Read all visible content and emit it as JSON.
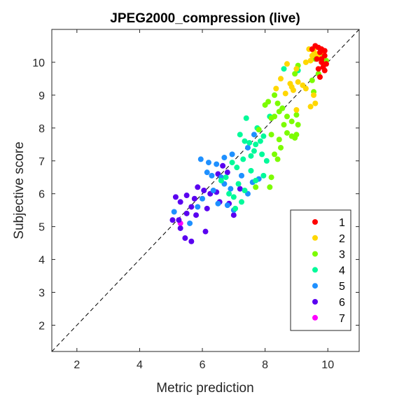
{
  "chart_data": {
    "type": "scatter",
    "title": "JPEG2000_compression (live)",
    "xlabel": "Metric prediction",
    "ylabel": "Subjective score",
    "xlim": [
      1.2,
      11.0
    ],
    "ylim": [
      1.2,
      11.0
    ],
    "xticks": [
      "2",
      "4",
      "6",
      "8",
      "10"
    ],
    "yticks": [
      "2",
      "3",
      "4",
      "5",
      "6",
      "7",
      "8",
      "9",
      "10"
    ],
    "grid": false,
    "reference_line": "diagonal dashed y = x",
    "legend_position": "bottom-right",
    "series": [
      {
        "name": "1",
        "color": "#ff0000",
        "points": [
          [
            9.6,
            10.5
          ],
          [
            9.7,
            10.45
          ],
          [
            9.8,
            10.4
          ],
          [
            9.75,
            10.3
          ],
          [
            9.9,
            10.2
          ],
          [
            9.65,
            10.1
          ],
          [
            9.8,
            10.0
          ],
          [
            9.95,
            9.95
          ],
          [
            9.85,
            9.85
          ],
          [
            9.7,
            9.8
          ],
          [
            9.9,
            9.75
          ],
          [
            9.75,
            9.55
          ],
          [
            9.5,
            10.4
          ],
          [
            9.9,
            10.35
          ],
          [
            9.8,
            10.1
          ]
        ]
      },
      {
        "name": "2",
        "color": "#ffd700",
        "points": [
          [
            9.4,
            10.4
          ],
          [
            9.55,
            10.35
          ],
          [
            9.65,
            10.25
          ],
          [
            9.5,
            10.2
          ],
          [
            9.7,
            10.15
          ],
          [
            9.3,
            10.0
          ],
          [
            9.8,
            10.3
          ],
          [
            9.45,
            10.05
          ],
          [
            9.6,
            10.45
          ],
          [
            9.0,
            9.8
          ],
          [
            8.7,
            9.95
          ],
          [
            8.5,
            9.5
          ],
          [
            8.8,
            9.35
          ],
          [
            9.05,
            9.4
          ],
          [
            9.2,
            9.3
          ],
          [
            8.85,
            9.25
          ],
          [
            9.3,
            9.2
          ],
          [
            8.9,
            9.15
          ],
          [
            8.65,
            9.05
          ],
          [
            9.55,
            9.0
          ],
          [
            9.6,
            8.75
          ],
          [
            9.45,
            8.65
          ],
          [
            9.0,
            8.55
          ],
          [
            8.35,
            9.2
          ]
        ]
      },
      {
        "name": "3",
        "color": "#7cfc00",
        "points": [
          [
            9.85,
            10.25
          ],
          [
            9.6,
            10.1
          ],
          [
            9.95,
            10.05
          ],
          [
            9.7,
            9.65
          ],
          [
            9.55,
            9.1
          ],
          [
            9.05,
            9.9
          ],
          [
            8.95,
            9.65
          ],
          [
            9.5,
            9.45
          ],
          [
            8.3,
            9.0
          ],
          [
            8.1,
            8.8
          ],
          [
            8.4,
            8.75
          ],
          [
            8.0,
            8.7
          ],
          [
            8.55,
            8.6
          ],
          [
            8.45,
            8.5
          ],
          [
            8.3,
            8.35
          ],
          [
            8.7,
            8.35
          ],
          [
            8.2,
            8.3
          ],
          [
            9.0,
            8.4
          ],
          [
            8.85,
            8.2
          ],
          [
            9.05,
            8.1
          ],
          [
            8.6,
            8.1
          ],
          [
            7.8,
            7.95
          ],
          [
            8.2,
            7.8
          ],
          [
            8.45,
            7.65
          ],
          [
            8.7,
            7.85
          ],
          [
            8.85,
            7.75
          ],
          [
            9.0,
            7.8
          ],
          [
            8.95,
            7.7
          ],
          [
            8.5,
            7.4
          ],
          [
            8.3,
            7.2
          ],
          [
            8.4,
            7.05
          ],
          [
            8.2,
            6.5
          ],
          [
            8.15,
            6.2
          ],
          [
            7.7,
            6.2
          ]
        ]
      },
      {
        "name": "4",
        "color": "#00fa9a",
        "points": [
          [
            9.05,
            9.75
          ],
          [
            8.6,
            9.8
          ],
          [
            8.55,
            8.6
          ],
          [
            7.4,
            8.3
          ],
          [
            7.75,
            8.0
          ],
          [
            8.15,
            8.35
          ],
          [
            7.8,
            7.95
          ],
          [
            7.95,
            7.75
          ],
          [
            7.2,
            7.8
          ],
          [
            7.35,
            7.6
          ],
          [
            7.5,
            7.55
          ],
          [
            7.85,
            7.6
          ],
          [
            7.7,
            7.5
          ],
          [
            7.65,
            7.3
          ],
          [
            7.9,
            7.2
          ],
          [
            7.55,
            7.15
          ],
          [
            8.05,
            7.0
          ],
          [
            6.95,
            6.95
          ],
          [
            7.3,
            7.05
          ],
          [
            7.1,
            6.8
          ],
          [
            7.55,
            6.7
          ],
          [
            7.95,
            6.55
          ],
          [
            7.7,
            6.4
          ],
          [
            6.75,
            6.5
          ],
          [
            7.15,
            6.3
          ],
          [
            7.35,
            6.1
          ],
          [
            6.85,
            6.0
          ],
          [
            7.0,
            5.9
          ],
          [
            7.25,
            5.75
          ],
          [
            7.05,
            5.55
          ],
          [
            6.6,
            6.4
          ]
        ]
      },
      {
        "name": "5",
        "color": "#1e90ff",
        "points": [
          [
            7.65,
            7.8
          ],
          [
            7.45,
            7.4
          ],
          [
            6.95,
            7.2
          ],
          [
            6.7,
            7.1
          ],
          [
            5.95,
            7.05
          ],
          [
            6.2,
            6.95
          ],
          [
            6.45,
            6.9
          ],
          [
            6.15,
            6.65
          ],
          [
            6.3,
            6.55
          ],
          [
            7.25,
            6.55
          ],
          [
            6.6,
            6.5
          ],
          [
            6.7,
            6.3
          ],
          [
            6.9,
            6.15
          ],
          [
            6.35,
            6.1
          ],
          [
            7.45,
            6.0
          ],
          [
            7.6,
            6.35
          ],
          [
            7.8,
            6.45
          ],
          [
            6.0,
            5.85
          ],
          [
            6.5,
            5.7
          ],
          [
            6.8,
            5.65
          ],
          [
            7.0,
            5.5
          ],
          [
            5.1,
            5.45
          ],
          [
            5.6,
            5.1
          ],
          [
            5.85,
            5.6
          ]
        ]
      },
      {
        "name": "6",
        "color": "#5a00f0",
        "points": [
          [
            6.65,
            6.85
          ],
          [
            6.8,
            6.65
          ],
          [
            6.5,
            6.6
          ],
          [
            5.85,
            6.2
          ],
          [
            6.05,
            6.1
          ],
          [
            6.25,
            6.0
          ],
          [
            6.45,
            6.05
          ],
          [
            5.5,
            5.95
          ],
          [
            5.15,
            5.9
          ],
          [
            5.75,
            5.85
          ],
          [
            6.55,
            5.75
          ],
          [
            6.85,
            5.7
          ],
          [
            5.3,
            5.75
          ],
          [
            5.65,
            5.6
          ],
          [
            6.15,
            5.55
          ],
          [
            5.5,
            5.4
          ],
          [
            5.25,
            5.2
          ],
          [
            5.05,
            5.2
          ],
          [
            5.3,
            4.95
          ],
          [
            5.8,
            5.35
          ],
          [
            6.1,
            4.85
          ],
          [
            5.45,
            4.65
          ],
          [
            5.65,
            4.55
          ],
          [
            7.0,
            5.35
          ],
          [
            7.2,
            6.15
          ]
        ]
      },
      {
        "name": "7",
        "color": "#ff00ff",
        "points": [
          [
            5.3,
            5.1
          ]
        ]
      }
    ]
  }
}
